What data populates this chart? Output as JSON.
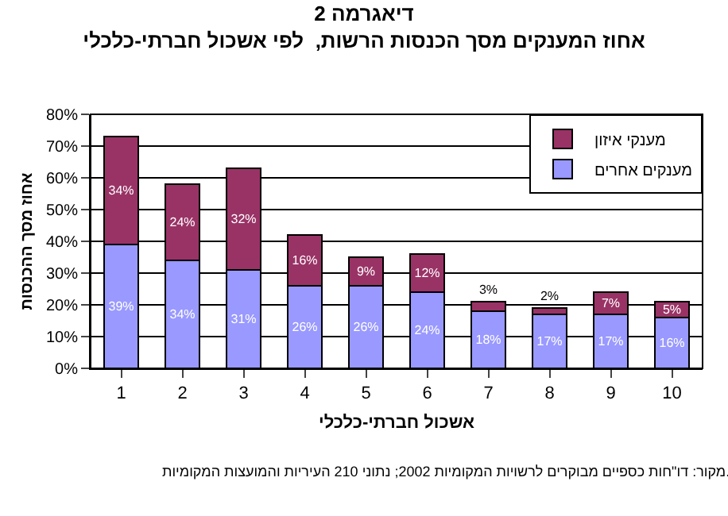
{
  "chart_data": {
    "type": "bar",
    "stacked": true,
    "title": "דיאגרמה 2",
    "subtitle": "אחוז המענקים מסך הכנסות הרשות,  לפי אשכול חברתי-כלכלי",
    "xlabel": "אשכול חברתי-כלכלי",
    "ylabel": "אחוז מסך ההכנסות",
    "annotations": [
      "מקור: דו\"חות כספיים מבוקרים לרשויות המקומיות 2002; נתוני 210 העיריות והמועצות המקומיות."
    ],
    "categories": [
      "1",
      "2",
      "3",
      "4",
      "5",
      "6",
      "7",
      "8",
      "9",
      "10"
    ],
    "series": [
      {
        "name": "מענקים אחרים",
        "color": "#9999ff",
        "values": [
          39,
          34,
          31,
          26,
          26,
          24,
          18,
          17,
          17,
          16
        ],
        "value_labels": [
          "39%",
          "34%",
          "31%",
          "26%",
          "26%",
          "24%",
          "18%",
          "17%",
          "17%",
          "16%"
        ]
      },
      {
        "name": "מענקי איזון",
        "color": "#993366",
        "values": [
          34,
          24,
          32,
          16,
          9,
          12,
          3,
          2,
          7,
          5
        ],
        "value_labels": [
          "34%",
          "24%",
          "32%",
          "16%",
          "9%",
          "12%",
          "3%",
          "2%",
          "7%",
          "5%"
        ]
      }
    ],
    "ylim": [
      0,
      80
    ],
    "yticks": [
      {
        "value": 0,
        "label": "0%"
      },
      {
        "value": 10,
        "label": "10%"
      },
      {
        "value": 20,
        "label": "20%"
      },
      {
        "value": 30,
        "label": "30%"
      },
      {
        "value": 40,
        "label": "40%"
      },
      {
        "value": 50,
        "label": "50%"
      },
      {
        "value": 60,
        "label": "60%"
      },
      {
        "value": 70,
        "label": "70%"
      },
      {
        "value": 80,
        "label": "80%"
      }
    ],
    "grid": "y",
    "legend": "top right"
  }
}
